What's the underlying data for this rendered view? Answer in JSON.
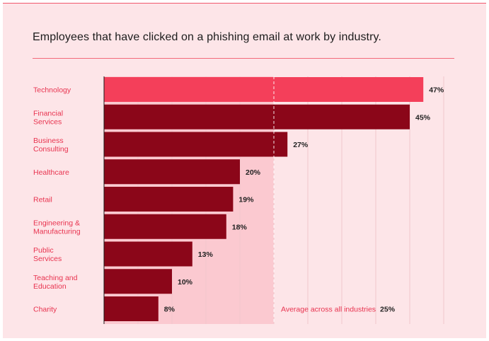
{
  "title": "Employees that have clicked on a phishing email at work by industry.",
  "colors": {
    "background": "#fde5e8",
    "highlight_bar": "#f43f5a",
    "bar": "#8b0619",
    "average_band": "#fbc9d0",
    "label": "#e8334f",
    "grid": "#f1c6cc"
  },
  "chart_data": {
    "type": "bar",
    "orientation": "horizontal",
    "title": "Employees that have clicked on a phishing email at work by industry.",
    "categories": [
      [
        "Technology"
      ],
      [
        "Financial",
        "Services"
      ],
      [
        "Business",
        "Consulting"
      ],
      [
        "Healthcare"
      ],
      [
        "Retail"
      ],
      [
        "Engineering &",
        "Manufacturing"
      ],
      [
        "Public",
        "Services"
      ],
      [
        "Teaching and",
        "Education"
      ],
      [
        "Charity"
      ]
    ],
    "values": [
      47,
      45,
      27,
      20,
      19,
      18,
      13,
      10,
      8
    ],
    "value_labels": [
      "47%",
      "45%",
      "27%",
      "20%",
      "19%",
      "18%",
      "13%",
      "10%",
      "8%"
    ],
    "highlight_index": 0,
    "xlim": [
      0,
      50
    ],
    "grid": true,
    "average": {
      "label": "Average across all industries",
      "value": 25,
      "value_label": "25%"
    }
  }
}
